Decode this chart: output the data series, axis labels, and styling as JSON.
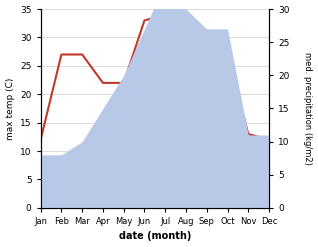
{
  "months": [
    "Jan",
    "Feb",
    "Mar",
    "Apr",
    "May",
    "Jun",
    "Jul",
    "Aug",
    "Sep",
    "Oct",
    "Nov",
    "Dec"
  ],
  "temperature": [
    12,
    27,
    27,
    22,
    22,
    33,
    34,
    33,
    27,
    27,
    13,
    12
  ],
  "precipitation": [
    8,
    8,
    10,
    15,
    20,
    27,
    34,
    30,
    27,
    27,
    11,
    11
  ],
  "temp_color": "#c0392b",
  "precip_fill_color": "#b8c9e8",
  "left_ylabel": "max temp (C)",
  "right_ylabel": "med. precipitation (kg/m2)",
  "xlabel": "date (month)",
  "left_ylim": [
    0,
    35
  ],
  "right_ylim": [
    0,
    30
  ],
  "left_yticks": [
    0,
    5,
    10,
    15,
    20,
    25,
    30,
    35
  ],
  "right_yticks": [
    0,
    5,
    10,
    15,
    20,
    25,
    30
  ],
  "grid_color": "#cccccc"
}
